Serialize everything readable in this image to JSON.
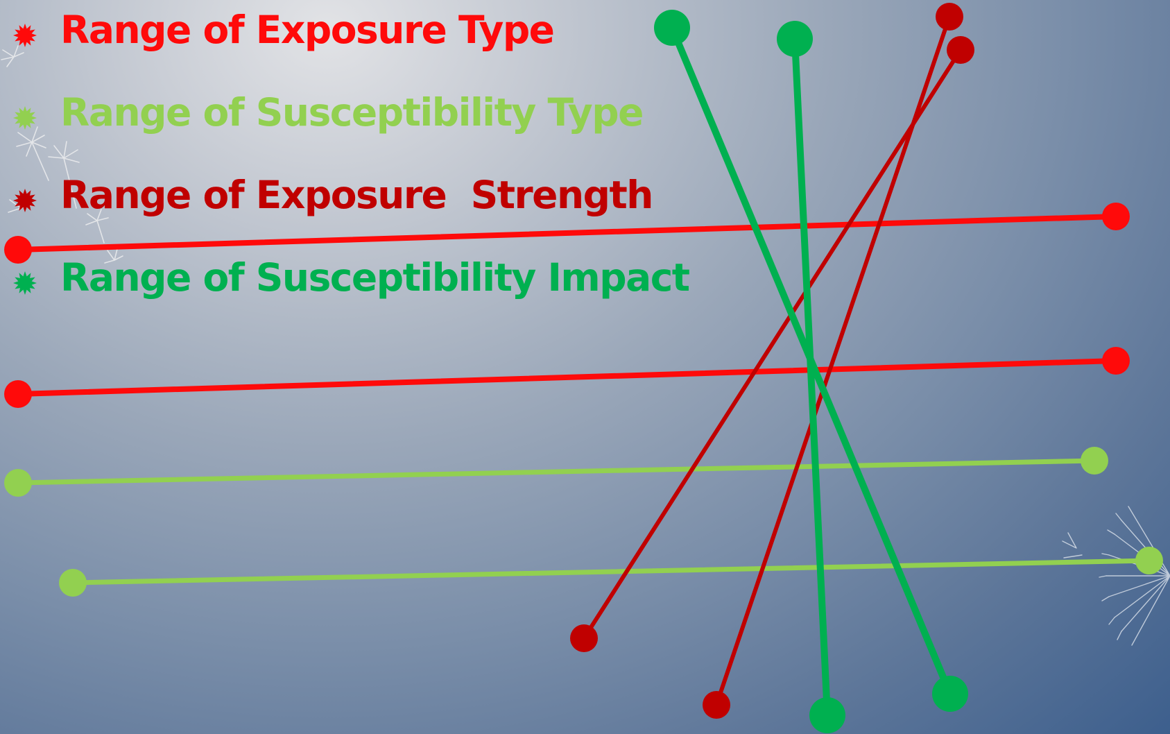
{
  "colors": {
    "exposure_type": "#ff0a0a",
    "susceptibility_type": "#92d050",
    "exposure_strength": "#c00000",
    "susceptibility_impact": "#00b050"
  },
  "bullets": [
    {
      "label": "Range of Exposure Type",
      "color": "#ff0a0a",
      "icon": "starburst-icon"
    },
    {
      "label": "Range of Susceptibility Type",
      "color": "#92d050",
      "icon": "starburst-icon"
    },
    {
      "label": "Range of Exposure  Strength",
      "color": "#c00000",
      "icon": "starburst-icon"
    },
    {
      "label": "Range of Susceptibility Impact",
      "color": "#00b050",
      "icon": "starburst-icon"
    }
  ],
  "decorations": [
    "dandelion-seeds-top-left",
    "dandelion-right-edge"
  ]
}
